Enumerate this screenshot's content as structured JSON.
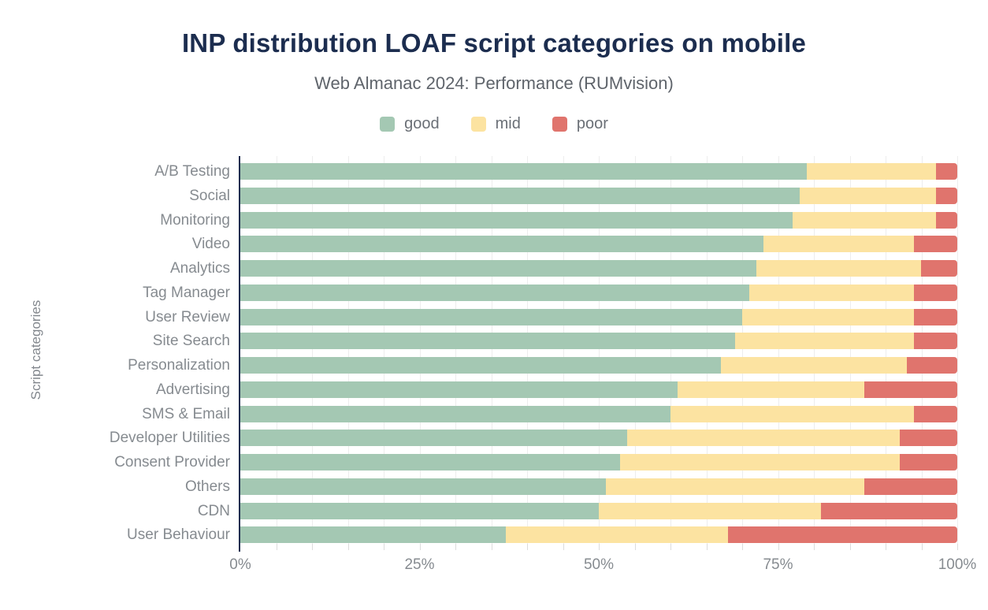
{
  "title": "INP distribution LOAF script categories on mobile",
  "subtitle": "Web Almanac 2024: Performance (RUMvision)",
  "y_axis_title": "Script categories",
  "colors": {
    "title_navy": "#1c2d4f",
    "good": "#a4c8b3",
    "mid": "#fce3a1",
    "poor": "#e0746d",
    "axis_line": "#1c2d4f",
    "label_gray": "#868b90"
  },
  "legend": {
    "items": [
      {
        "label": "good",
        "color": "#a4c8b3"
      },
      {
        "label": "mid",
        "color": "#fce3a1"
      },
      {
        "label": "poor",
        "color": "#e0746d"
      }
    ]
  },
  "x_axis": {
    "ticks": [
      "0%",
      "25%",
      "50%",
      "75%",
      "100%"
    ],
    "minor_tick_step": 5
  },
  "chart_data": {
    "type": "bar",
    "orientation": "horizontal",
    "stacked": true,
    "unit": "%",
    "title": "INP distribution LOAF script categories on mobile",
    "subtitle": "Web Almanac 2024: Performance (RUMvision)",
    "xlabel": "",
    "ylabel": "Script categories",
    "xlim": [
      0,
      100
    ],
    "grid": true,
    "legend_position": "top",
    "categories": [
      "A/B Testing",
      "Social",
      "Monitoring",
      "Video",
      "Analytics",
      "Tag Manager",
      "User Review",
      "Site Search",
      "Personalization",
      "Advertising",
      "SMS & Email",
      "Developer Utilities",
      "Consent Provider",
      "Others",
      "CDN",
      "User Behaviour"
    ],
    "series": [
      {
        "name": "good",
        "color": "#a4c8b3",
        "values": [
          79,
          78,
          77,
          73,
          72,
          71,
          70,
          69,
          67,
          61,
          60,
          54,
          53,
          51,
          50,
          37
        ]
      },
      {
        "name": "mid",
        "color": "#fce3a1",
        "values": [
          18,
          19,
          20,
          21,
          23,
          23,
          24,
          25,
          26,
          26,
          34,
          38,
          39,
          36,
          31,
          31
        ]
      },
      {
        "name": "poor",
        "color": "#e0746d",
        "values": [
          3,
          3,
          3,
          6,
          5,
          6,
          6,
          6,
          7,
          13,
          6,
          8,
          8,
          13,
          19,
          32
        ]
      }
    ]
  }
}
